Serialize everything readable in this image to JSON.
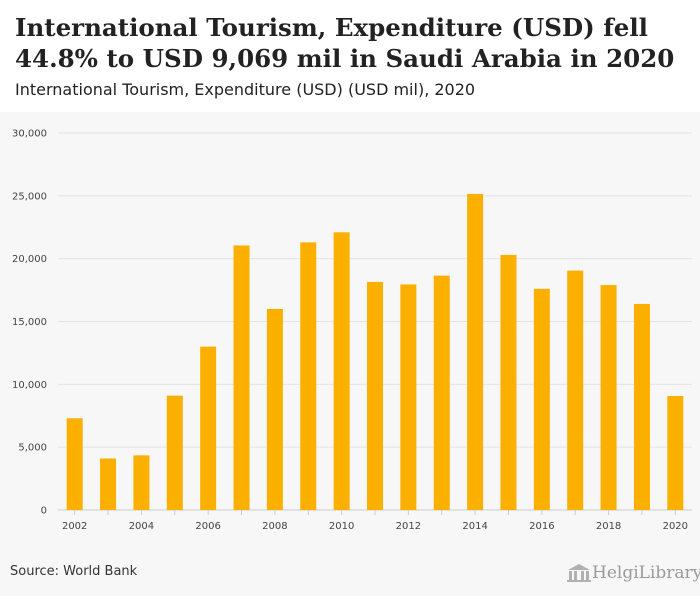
{
  "title": "International Tourism, Expenditure (USD) fell 44.8% to USD 9,069 mil in Saudi Arabia in 2020",
  "subtitle": "International Tourism, Expenditure (USD) (USD mil), 2020",
  "source": "Source: World Bank",
  "logo": "HelgiLibrary",
  "colors": {
    "bar": "#fbb000",
    "grid": "#e3e3e3",
    "tick": "#444444"
  },
  "chart_data": {
    "type": "bar",
    "title": "International Tourism, Expenditure (USD) fell 44.8% to USD 9,069 mil in Saudi Arabia in 2020",
    "xlabel": "",
    "ylabel": "",
    "ylim": [
      0,
      30000
    ],
    "y_ticks": [
      0,
      5000,
      10000,
      15000,
      20000,
      25000,
      30000
    ],
    "y_tick_labels": [
      "0",
      "5,000",
      "10,000",
      "15,000",
      "20,000",
      "25,000",
      "30,000"
    ],
    "categories": [
      "2002",
      "2003",
      "2004",
      "2005",
      "2006",
      "2007",
      "2008",
      "2009",
      "2010",
      "2011",
      "2012",
      "2013",
      "2014",
      "2015",
      "2016",
      "2017",
      "2018",
      "2019",
      "2020"
    ],
    "x_tick_labels": [
      "2002",
      "",
      "2004",
      "",
      "2006",
      "",
      "2008",
      "",
      "2010",
      "",
      "2012",
      "",
      "2014",
      "",
      "2016",
      "",
      "2018",
      "",
      "2020"
    ],
    "values": [
      7300,
      4100,
      4350,
      9100,
      13000,
      21050,
      16000,
      21300,
      22100,
      18150,
      17950,
      18650,
      25150,
      20300,
      17600,
      19050,
      17900,
      16400,
      9069
    ]
  }
}
